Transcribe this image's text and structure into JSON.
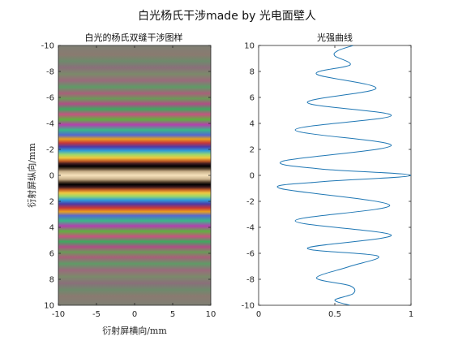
{
  "figure": {
    "suptitle": "白光杨氏干涉made by 光电面壁人"
  },
  "chart_data": [
    {
      "type": "heatmap",
      "title": "白光的杨氏双缝干涉图样",
      "xlabel": "衍射屏横向/mm",
      "ylabel": "衍射屏纵向/mm",
      "xlim": [
        -10,
        10
      ],
      "ylim": [
        -10,
        10
      ],
      "y_reversed": true,
      "x_ticks": [
        -10,
        -5,
        0,
        5,
        10
      ],
      "y_ticks": [
        -10,
        -8,
        -6,
        -4,
        -2,
        0,
        2,
        4,
        6,
        8,
        10
      ],
      "fringe_bands": [
        {
          "y": -10,
          "color": "#7e8074"
        },
        {
          "y": -9.3,
          "color": "#8a7a70"
        },
        {
          "y": -8.8,
          "color": "#6e8a6c"
        },
        {
          "y": -8.3,
          "color": "#8a6f7a"
        },
        {
          "y": -7.8,
          "color": "#7b8a6a"
        },
        {
          "y": -7.3,
          "color": "#9a6a7c"
        },
        {
          "y": -6.8,
          "color": "#5f9a66"
        },
        {
          "y": -6.3,
          "color": "#a8607a"
        },
        {
          "y": -5.9,
          "color": "#6a9a58"
        },
        {
          "y": -5.5,
          "color": "#b04e86"
        },
        {
          "y": -5.1,
          "color": "#3fa85e"
        },
        {
          "y": -4.7,
          "color": "#c45480"
        },
        {
          "y": -4.3,
          "color": "#5fb040"
        },
        {
          "y": -3.9,
          "color": "#b43fae"
        },
        {
          "y": -3.5,
          "color": "#3ab886"
        },
        {
          "y": -3.1,
          "color": "#5468d0"
        },
        {
          "y": -2.8,
          "color": "#e8a020"
        },
        {
          "y": -2.5,
          "color": "#c83838"
        },
        {
          "y": -2.2,
          "color": "#4d3aa8"
        },
        {
          "y": -1.9,
          "color": "#2e9ed8"
        },
        {
          "y": -1.6,
          "color": "#9ed86a"
        },
        {
          "y": -1.35,
          "color": "#f0c840"
        },
        {
          "y": -1.1,
          "color": "#c05a24"
        },
        {
          "y": -0.9,
          "color": "#3c1a20"
        },
        {
          "y": -0.7,
          "color": "#000000"
        },
        {
          "y": -0.5,
          "color": "#5a4630"
        },
        {
          "y": -0.3,
          "color": "#c8b08a"
        },
        {
          "y": 0,
          "color": "#f6e2bc"
        },
        {
          "y": 0.3,
          "color": "#c8b08a"
        },
        {
          "y": 0.5,
          "color": "#5a4630"
        },
        {
          "y": 0.7,
          "color": "#000000"
        },
        {
          "y": 0.9,
          "color": "#3c1a20"
        },
        {
          "y": 1.1,
          "color": "#c05a24"
        },
        {
          "y": 1.35,
          "color": "#f0c840"
        },
        {
          "y": 1.6,
          "color": "#9ed86a"
        },
        {
          "y": 1.9,
          "color": "#2e9ed8"
        },
        {
          "y": 2.2,
          "color": "#4d3aa8"
        },
        {
          "y": 2.5,
          "color": "#c83838"
        },
        {
          "y": 2.8,
          "color": "#e8a020"
        },
        {
          "y": 3.1,
          "color": "#5468d0"
        },
        {
          "y": 3.5,
          "color": "#3ab886"
        },
        {
          "y": 3.9,
          "color": "#b43fae"
        },
        {
          "y": 4.3,
          "color": "#5fb040"
        },
        {
          "y": 4.7,
          "color": "#c45480"
        },
        {
          "y": 5.1,
          "color": "#3fa85e"
        },
        {
          "y": 5.5,
          "color": "#b04e86"
        },
        {
          "y": 5.9,
          "color": "#6a9a58"
        },
        {
          "y": 6.3,
          "color": "#a8607a"
        },
        {
          "y": 6.8,
          "color": "#5f9a66"
        },
        {
          "y": 7.3,
          "color": "#9a6a7c"
        },
        {
          "y": 7.8,
          "color": "#7b8a6a"
        },
        {
          "y": 8.3,
          "color": "#8a6f7a"
        },
        {
          "y": 8.8,
          "color": "#6e8a6c"
        },
        {
          "y": 9.3,
          "color": "#8a7a70"
        },
        {
          "y": 10,
          "color": "#7e8074"
        }
      ]
    },
    {
      "type": "line",
      "title": "光强曲线",
      "xlabel": "",
      "ylabel": "",
      "xlim": [
        0,
        1
      ],
      "ylim": [
        -10,
        10
      ],
      "x_ticks": [
        0,
        0.5,
        1
      ],
      "y_ticks": [
        -10,
        -8,
        -6,
        -4,
        -2,
        0,
        2,
        4,
        6,
        8,
        10
      ],
      "line_color": "#1f77b4",
      "series": [
        {
          "points": [
            {
              "y": -10,
              "x": 0.6
            },
            {
              "y": -9.6,
              "x": 0.5
            },
            {
              "y": -9.1,
              "x": 0.62
            },
            {
              "y": -8.5,
              "x": 0.6
            },
            {
              "y": -7.9,
              "x": 0.38
            },
            {
              "y": -7.0,
              "x": 0.6
            },
            {
              "y": -6.2,
              "x": 0.78
            },
            {
              "y": -5.6,
              "x": 0.32
            },
            {
              "y": -4.6,
              "x": 0.87
            },
            {
              "y": -3.5,
              "x": 0.24
            },
            {
              "y": -2.3,
              "x": 0.86
            },
            {
              "y": -1.0,
              "x": 0.14
            },
            {
              "y": -0.5,
              "x": 0.4
            },
            {
              "y": 0,
              "x": 1.0
            },
            {
              "y": 0.5,
              "x": 0.4
            },
            {
              "y": 1.1,
              "x": 0.16
            },
            {
              "y": 2.3,
              "x": 0.87
            },
            {
              "y": 3.5,
              "x": 0.24
            },
            {
              "y": 4.6,
              "x": 0.87
            },
            {
              "y": 5.6,
              "x": 0.32
            },
            {
              "y": 6.7,
              "x": 0.77
            },
            {
              "y": 7.8,
              "x": 0.38
            },
            {
              "y": 8.5,
              "x": 0.6
            },
            {
              "y": 9.2,
              "x": 0.5
            },
            {
              "y": 9.6,
              "x": 0.52
            },
            {
              "y": 10,
              "x": 0.62
            }
          ]
        }
      ]
    }
  ]
}
